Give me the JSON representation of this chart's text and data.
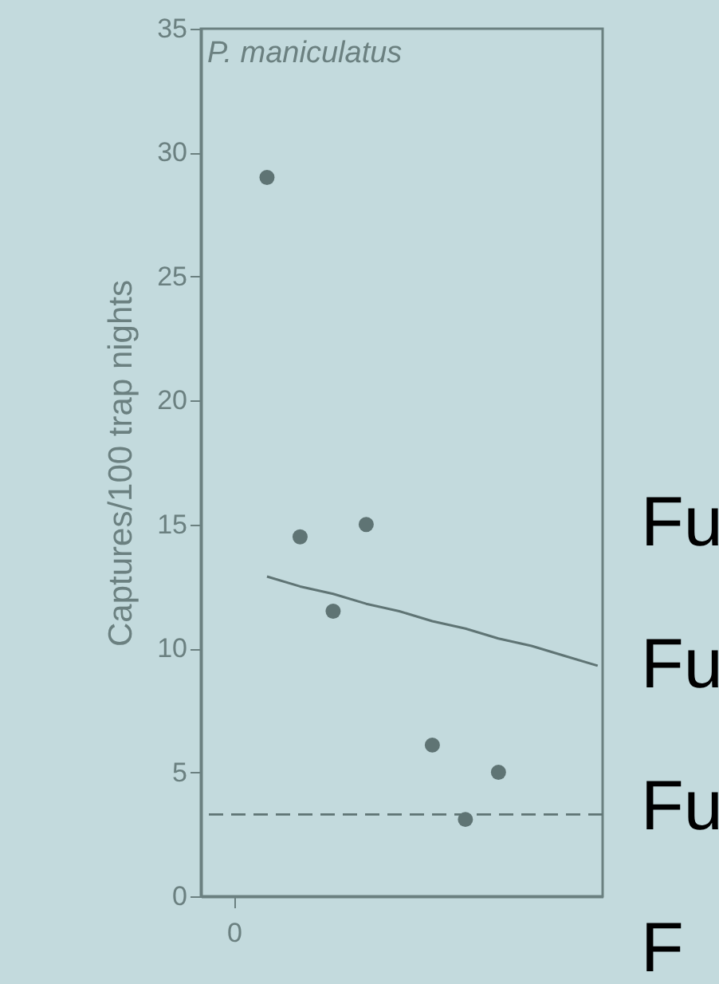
{
  "chart_data": {
    "type": "scatter",
    "ylabel": "Captures/100 trap nights",
    "annotations": [
      "P. maniculatus",
      "Fu",
      "Fu",
      "Fu",
      "F"
    ],
    "categories": [
      "0",
      null,
      null,
      null,
      null,
      null,
      null,
      null,
      null,
      null,
      null,
      null
    ],
    "ylim": [
      0,
      35
    ],
    "yticks": [
      0,
      5,
      10,
      15,
      20,
      25,
      30,
      35
    ],
    "grid": false,
    "marker": "circle",
    "series": [
      {
        "color": "#5f7474",
        "values": [
          null,
          29,
          14.5,
          11.5,
          15,
          null,
          6.1,
          3.1,
          5,
          null,
          null,
          null
        ]
      },
      {
        "type": "line",
        "color": "#5f7474",
        "values": [
          null,
          12.9,
          12.5,
          12.2,
          11.8,
          11.5,
          11.1,
          10.8,
          10.4,
          10.1,
          9.7,
          9.3
        ],
        "line_style": "solid",
        "marker": "none"
      }
    ],
    "ref_lines": [
      {
        "axis": "y",
        "value": 3.3,
        "color": "#5f7474",
        "line_style": "dashed"
      }
    ]
  }
}
